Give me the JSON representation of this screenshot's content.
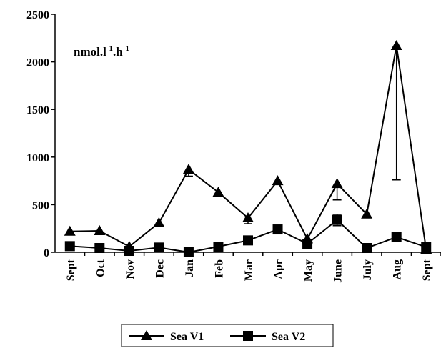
{
  "chart_data": {
    "type": "line",
    "annotation": [
      "nmol.l",
      "-1",
      ".h",
      "-1"
    ],
    "categories": [
      "Sept",
      "Oct",
      "Nov",
      "Dec",
      "Jan",
      "Feb",
      "Mar",
      "Apr",
      "May",
      "June",
      "July",
      "Aug",
      "Sept"
    ],
    "series": [
      {
        "name": "Sea V1",
        "color": "#000000",
        "marker": "triangle",
        "error_direction": "minus",
        "values": [
          220,
          225,
          60,
          310,
          870,
          630,
          360,
          750,
          140,
          720,
          400,
          2170,
          30
        ],
        "errors": [
          null,
          null,
          null,
          null,
          70,
          null,
          60,
          null,
          30,
          170,
          null,
          1410,
          null
        ]
      },
      {
        "name": "Sea V2",
        "color": "#000000",
        "marker": "square",
        "error_direction": "both",
        "values": [
          65,
          45,
          15,
          50,
          0,
          60,
          125,
          240,
          90,
          340,
          45,
          160,
          55
        ],
        "errors": [
          null,
          null,
          null,
          null,
          null,
          null,
          20,
          30,
          30,
          60,
          null,
          20,
          null
        ]
      }
    ],
    "ylim": [
      0,
      2500
    ],
    "yticks": [
      0,
      500,
      1000,
      1500,
      2000,
      2500
    ],
    "grid": false
  }
}
